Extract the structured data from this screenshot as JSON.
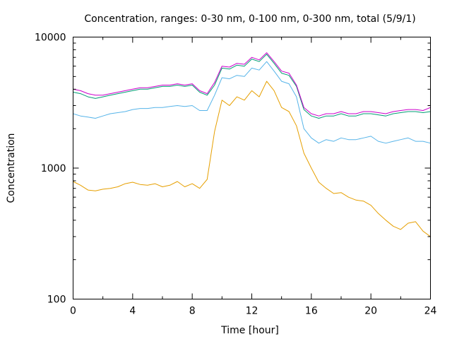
{
  "chart_data": {
    "type": "line",
    "title": "Concentration, ranges: 0-30 nm, 0-100 nm, 0-300 nm, total (5/9/1)",
    "xlabel": "Time [hour]",
    "ylabel": "Concentration",
    "xlim": [
      0,
      24
    ],
    "ylim": [
      100,
      10000
    ],
    "yscale": "log",
    "grid": false,
    "legend": "none",
    "x_ticks": [
      "0",
      "4",
      "8",
      "12",
      "16",
      "20",
      "24"
    ],
    "y_ticks": [
      "100",
      "1000",
      "10000"
    ],
    "x": [
      0,
      0.5,
      1,
      1.5,
      2,
      2.5,
      3,
      3.5,
      4,
      4.5,
      5,
      5.5,
      6,
      6.5,
      7,
      7.5,
      8,
      8.5,
      9,
      9.5,
      10,
      10.5,
      11,
      11.5,
      12,
      12.5,
      13,
      13.5,
      14,
      14.5,
      15,
      15.5,
      16,
      16.5,
      17,
      17.5,
      18,
      18.5,
      19,
      19.5,
      20,
      20.5,
      21,
      21.5,
      22,
      22.5,
      23,
      23.5,
      24
    ],
    "series": [
      {
        "color": "#e69f00",
        "values": [
          790,
          740,
          680,
          670,
          690,
          700,
          720,
          760,
          780,
          750,
          740,
          760,
          720,
          740,
          790,
          720,
          760,
          700,
          820,
          1900,
          3300,
          3000,
          3500,
          3300,
          3900,
          3500,
          4600,
          3900,
          2900,
          2700,
          2100,
          1300,
          1000,
          780,
          700,
          640,
          650,
          600,
          570,
          560,
          520,
          450,
          400,
          360,
          340,
          380,
          390,
          330,
          300
        ]
      },
      {
        "color": "#56b4e9",
        "values": [
          2600,
          2500,
          2450,
          2400,
          2500,
          2600,
          2650,
          2700,
          2800,
          2850,
          2850,
          2900,
          2900,
          2950,
          3000,
          2950,
          3000,
          2750,
          2750,
          3600,
          4900,
          4800,
          5100,
          5000,
          5800,
          5600,
          6500,
          5500,
          4600,
          4400,
          3500,
          2000,
          1700,
          1550,
          1650,
          1600,
          1700,
          1650,
          1650,
          1700,
          1750,
          1600,
          1550,
          1600,
          1650,
          1700,
          1600,
          1600,
          1550
        ]
      },
      {
        "color": "#009e73",
        "values": [
          3800,
          3700,
          3500,
          3400,
          3500,
          3600,
          3700,
          3800,
          3900,
          4000,
          4000,
          4100,
          4200,
          4200,
          4300,
          4200,
          4300,
          3800,
          3600,
          4300,
          5800,
          5700,
          6100,
          6000,
          6800,
          6500,
          7400,
          6300,
          5300,
          5100,
          4200,
          2800,
          2500,
          2400,
          2500,
          2500,
          2600,
          2500,
          2500,
          2600,
          2600,
          2550,
          2500,
          2600,
          2650,
          2700,
          2700,
          2650,
          2700
        ]
      },
      {
        "color": "#cc00cc",
        "values": [
          4000,
          3900,
          3700,
          3600,
          3600,
          3700,
          3800,
          3900,
          4000,
          4100,
          4100,
          4200,
          4300,
          4300,
          4400,
          4300,
          4400,
          3900,
          3700,
          4500,
          6000,
          5900,
          6300,
          6200,
          7000,
          6700,
          7600,
          6500,
          5500,
          5300,
          4300,
          2900,
          2600,
          2500,
          2600,
          2600,
          2700,
          2600,
          2600,
          2700,
          2700,
          2650,
          2600,
          2700,
          2750,
          2800,
          2800,
          2750,
          2900
        ]
      }
    ]
  }
}
